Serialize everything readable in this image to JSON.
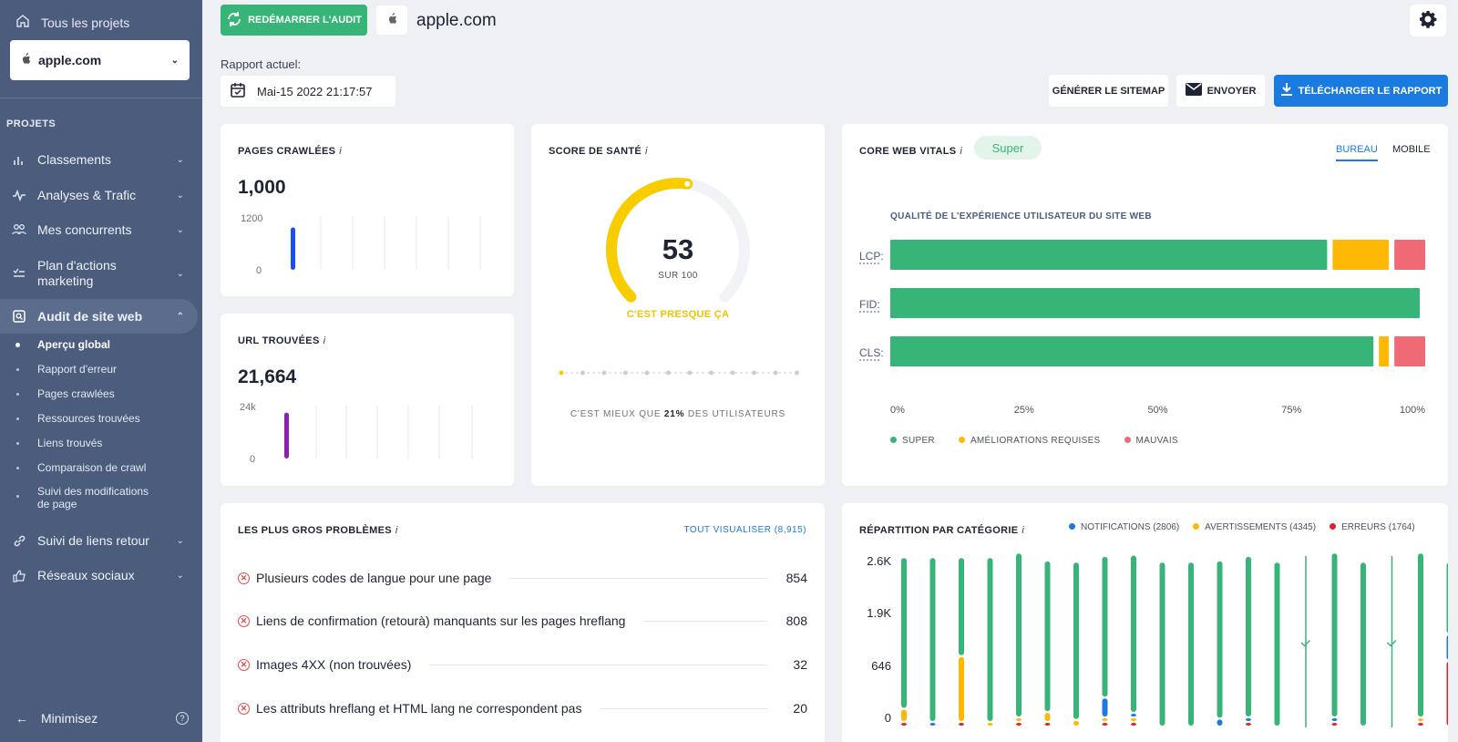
{
  "sidebar": {
    "all_projects": "Tous les projets",
    "project_select": "apple.com",
    "section_label": "PROJETS",
    "items": [
      {
        "label": "Classements",
        "icon": "bar-chart-icon"
      },
      {
        "label": "Analyses & Trafic",
        "icon": "pulse-icon"
      },
      {
        "label": "Mes concurrents",
        "icon": "users-icon"
      },
      {
        "label": "Plan d'actions marketing",
        "icon": "checklist-icon"
      },
      {
        "label": "Audit de site web",
        "icon": "audit-icon"
      },
      {
        "label": "Suivi de liens retour",
        "icon": "link-icon"
      },
      {
        "label": "Réseaux sociaux",
        "icon": "thumbs-up-icon"
      }
    ],
    "subitems": [
      "Aperçu global",
      "Rapport d'erreur",
      "Pages crawlées",
      "Ressources trouvées",
      "Liens trouvés",
      "Comparaison de crawl",
      "Suivi des modifications de page"
    ],
    "minimize": "Minimisez"
  },
  "header": {
    "restart_button": "REDÉMARRER L'AUDIT",
    "domain": "apple.com",
    "report_label": "Rapport actuel:",
    "report_date": "Mai-15 2022 21:17:57",
    "sitemap_button": "GÉNÉRER LE SITEMAP",
    "send_button": "ENVOYER",
    "download_button": "TÉLÉCHARGER LE RAPPORT"
  },
  "pages_crawled": {
    "title": "PAGES CRAWLÉES",
    "value": "1,000",
    "y_max": "1200",
    "y_min": "0",
    "level": 0.83
  },
  "urls_found": {
    "title": "URL TROUVÉES",
    "value": "21,664",
    "y_max": "24k",
    "y_min": "0",
    "level": 0.9
  },
  "health": {
    "title": "SCORE DE SANTÉ",
    "score": "53",
    "score_value": 53,
    "out_of": "SUR 100",
    "status": "C'EST PRESQUE ÇA",
    "better_prefix": "C'EST MIEUX QUE",
    "better_pct": "21%",
    "better_suffix": "DES UTILISATEURS"
  },
  "cwv": {
    "title": "CORE WEB VITALS",
    "badge": "Super",
    "tab_desktop": "BUREAU",
    "tab_mobile": "MOBILE",
    "subtitle": "QUALITÉ DE L'EXPÉRIENCE UTILISATEUR DU SITE WEB",
    "legend": [
      "SUPER",
      "AMÉLIORATIONS REQUISES",
      "MAUVAIS"
    ]
  },
  "problems": {
    "title": "LES PLUS GROS PROBLÈMES",
    "view_all": "TOUT VISUALISER (8,915)",
    "items": [
      {
        "label": "Plusieurs codes de langue pour une page",
        "count": "854"
      },
      {
        "label": "Liens de confirmation (retourà) manquants sur les pages hreflang",
        "count": "808"
      },
      {
        "label": "Images 4XX (non trouvées)",
        "count": "32"
      },
      {
        "label": "Les attributs hreflang et HTML lang ne correspondent pas",
        "count": "20"
      }
    ]
  },
  "category": {
    "title": "RÉPARTITION PAR CATÉGORIE",
    "legend": [
      "NOTIFICATIONS (2806)",
      "AVERTISSEMENTS (4345)",
      "ERREURS (1764)"
    ]
  },
  "colors": {
    "green": "#37b477",
    "yellow": "#ffb805",
    "red": "#f06a75",
    "blue": "#1b7ae0",
    "dark_red": "#e0202a",
    "gauge": "#f8cd00"
  },
  "chart_data": [
    {
      "type": "bar",
      "title": "CORE WEB VITALS",
      "categories": [
        "LCP:",
        "FID:",
        "CLS:"
      ],
      "x_ticks": [
        "0%",
        "25%",
        "50%",
        "75%",
        "100%"
      ],
      "xlim": [
        0,
        100
      ],
      "series": [
        {
          "name": "SUPER",
          "values": [
            86,
            100,
            95
          ]
        },
        {
          "name": "AMÉLIORATIONS REQUISES",
          "values": [
            12,
            0,
            3
          ]
        },
        {
          "name": "MAUVAIS",
          "values": [
            6,
            0,
            6
          ]
        }
      ]
    },
    {
      "type": "bar",
      "title": "RÉPARTITION PAR CATÉGORIE",
      "y_ticks": [
        "2.6K",
        "1.9K",
        "646",
        "0"
      ],
      "ylim": [
        0,
        2600
      ],
      "series": [
        {
          "name": "NOTIFICATIONS (2806)",
          "values": [
            0,
            20,
            0,
            0,
            0,
            0,
            0,
            300,
            60,
            0,
            0,
            120,
            40,
            0,
            0,
            30,
            0,
            0,
            0,
            400
          ]
        },
        {
          "name": "AVERTISSEMENTS (4345)",
          "values": [
            200,
            0,
            1000,
            20,
            20,
            150,
            100,
            40,
            40,
            0,
            0,
            0,
            0,
            0,
            0,
            0,
            0,
            0,
            20,
            0
          ]
        },
        {
          "name": "ERREURS (1764)",
          "values": [
            20,
            0,
            20,
            0,
            20,
            20,
            0,
            20,
            20,
            0,
            0,
            0,
            20,
            0,
            0,
            20,
            0,
            0,
            20,
            1000
          ]
        },
        {
          "name": "Super",
          "values": [
            2300,
            2500,
            1500,
            2500,
            2500,
            2300,
            2400,
            2150,
            2400,
            2500,
            2500,
            2400,
            2450,
            2500,
            0,
            2500,
            2500,
            0,
            2500,
            1100
          ]
        }
      ],
      "checks": [
        14,
        17
      ]
    }
  ]
}
